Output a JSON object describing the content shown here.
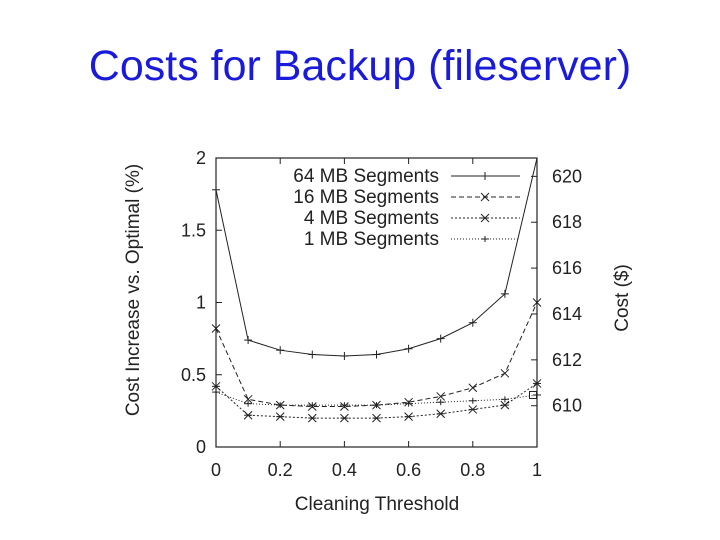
{
  "slide": {
    "title": "Costs for Backup (fileserver)"
  },
  "chart_data": {
    "type": "line",
    "xlabel": "Cleaning Threshold",
    "ylabel": "Cost Increase vs. Optimal (%)",
    "y2label": "Cost ($)",
    "xlim": [
      0,
      1
    ],
    "ylim": [
      0,
      2
    ],
    "y2lim": [
      608.2,
      620.8
    ],
    "x_ticks": [
      "0",
      "0.2",
      "0.4",
      "0.6",
      "0.8",
      "1"
    ],
    "y_ticks": [
      "0",
      "0.5",
      "1",
      "1.5",
      "2"
    ],
    "y2_ticks": [
      "610",
      "612",
      "614",
      "616",
      "618",
      "620"
    ],
    "grid": false,
    "legend": "top-right",
    "x": [
      0,
      0.1,
      0.2,
      0.3,
      0.4,
      0.5,
      0.6,
      0.7,
      0.8,
      0.9,
      1.0
    ],
    "series": [
      {
        "name": "64 MB Segments",
        "marker": "plus",
        "dash": "",
        "values": [
          1.78,
          0.74,
          0.67,
          0.64,
          0.63,
          0.64,
          0.68,
          0.75,
          0.86,
          1.06,
          2.05
        ]
      },
      {
        "name": "16 MB Segments",
        "marker": "x",
        "dash": "5,3",
        "values": [
          0.82,
          0.33,
          0.29,
          0.28,
          0.28,
          0.29,
          0.31,
          0.35,
          0.41,
          0.51,
          1.0
        ]
      },
      {
        "name": "4 MB Segments",
        "marker": "star",
        "dash": "2,2",
        "values": [
          0.42,
          0.22,
          0.21,
          0.2,
          0.2,
          0.2,
          0.21,
          0.23,
          0.26,
          0.29,
          0.44
        ]
      },
      {
        "name": "1 MB Segments",
        "marker": "tick",
        "dash": "1,2",
        "values": [
          0.38,
          0.3,
          0.29,
          0.29,
          0.29,
          0.29,
          0.3,
          0.31,
          0.32,
          0.33,
          0.36
        ]
      }
    ],
    "last_marker": {
      "x": 1.0,
      "y": 0.36,
      "shape": "square"
    }
  }
}
